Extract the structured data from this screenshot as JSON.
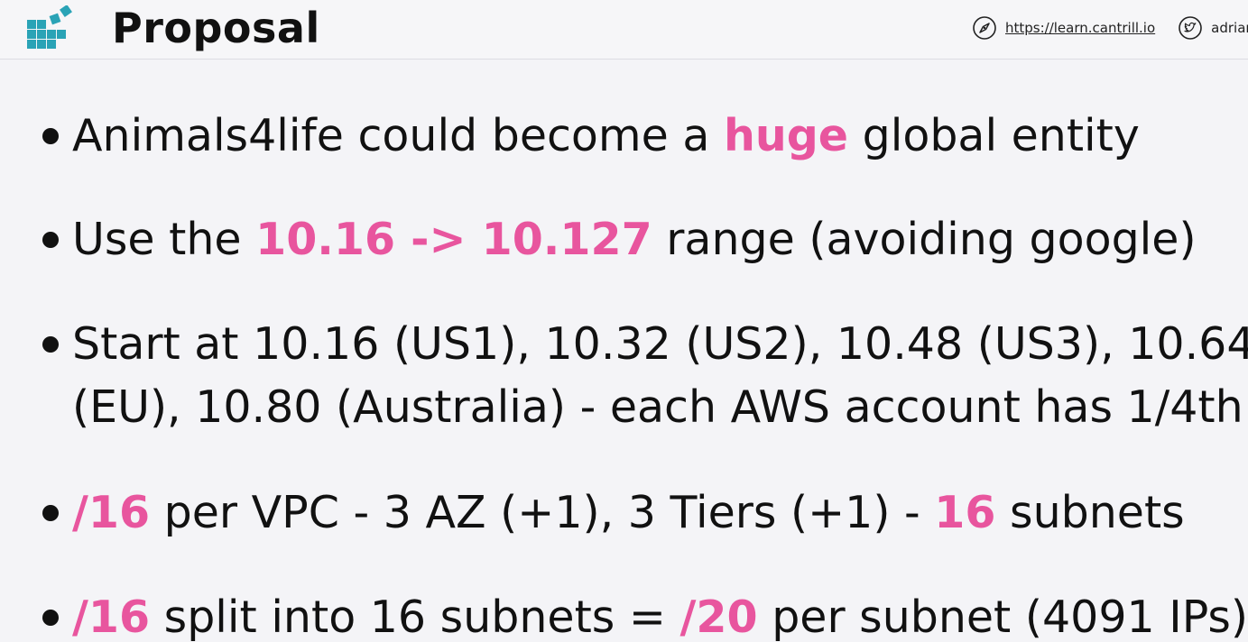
{
  "header": {
    "title": "Proposal",
    "website": "https://learn.cantrill.io",
    "twitter_handle": "adrian",
    "icons": [
      "compass-icon",
      "twitter-bird-icon",
      "cube-blocks-logo"
    ],
    "accent_color": "#e8559e",
    "logo_color": "#2aa3b6"
  },
  "bullets": [
    {
      "parts": [
        "Animals4life could become a ",
        "huge",
        " global entity"
      ]
    },
    {
      "parts": [
        "Use the ",
        "10.16 -> 10.127",
        " range (avoiding google)"
      ]
    },
    {
      "line1": "Start at 10.16 (US1), 10.32 (US2), 10.48 (US3), 10.64",
      "line2": "(EU), 10.80 (Australia) - each AWS account has 1/4th"
    },
    {
      "parts": [
        "/16",
        " per VPC - 3 AZ (+1), 3 Tiers (+1) - ",
        "16",
        " subnets"
      ]
    },
    {
      "parts": [
        "/16",
        " split into 16 subnets = ",
        "/20",
        " per subnet (4091 IPs)"
      ]
    }
  ]
}
